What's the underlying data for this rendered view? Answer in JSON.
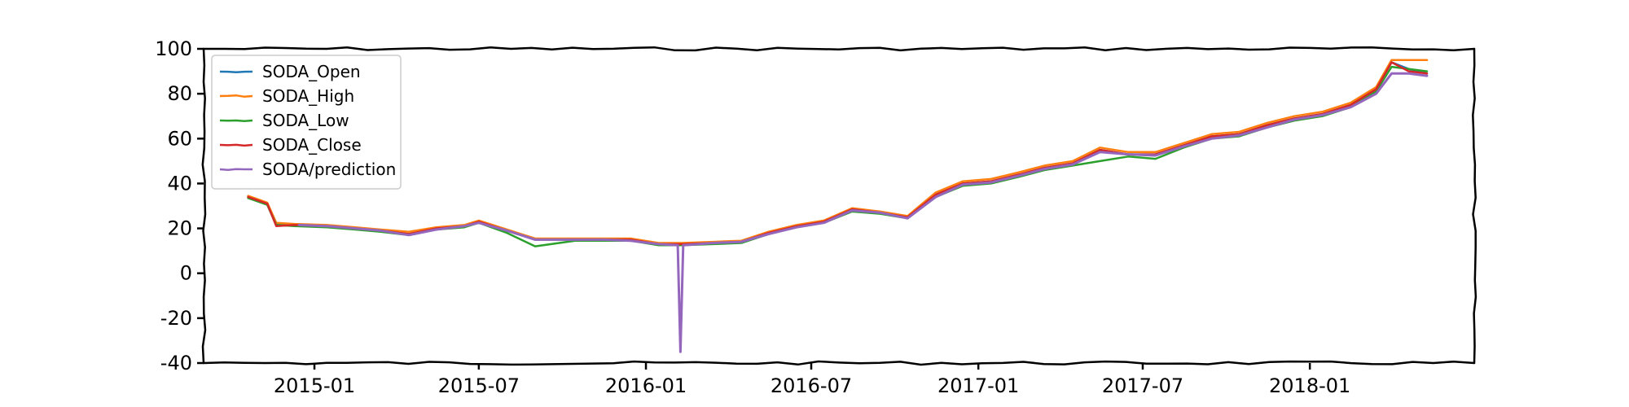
{
  "chart_data": {
    "type": "line",
    "title": "",
    "xlabel": "",
    "ylabel": "",
    "x_axis_type": "date",
    "xlim": [
      "2014-09-01",
      "2018-07-01"
    ],
    "ylim": [
      -40,
      100
    ],
    "yticks": [
      -40,
      -20,
      0,
      20,
      40,
      60,
      80,
      100
    ],
    "ytick_labels": [
      "-40",
      "-20",
      "0",
      "20",
      "40",
      "60",
      "80",
      "100"
    ],
    "xticks": [
      "2015-01-01",
      "2015-07-01",
      "2016-01-01",
      "2016-07-01",
      "2017-01-01",
      "2017-07-01",
      "2018-01-01"
    ],
    "xtick_labels": [
      "2015-01",
      "2015-07",
      "2016-01",
      "2016-07",
      "2017-01",
      "2017-07",
      "2018-01"
    ],
    "grid": false,
    "legend_position": "top-left",
    "style": "hand-drawn",
    "series": [
      {
        "name": "SODA_Open",
        "color": "#1f77b4",
        "points": [
          [
            "2014-10-20",
            34
          ],
          [
            "2014-11-10",
            31
          ],
          [
            "2014-11-20",
            22
          ],
          [
            "2014-12-10",
            21.5
          ],
          [
            "2015-01-15",
            21
          ],
          [
            "2015-02-15",
            20
          ],
          [
            "2015-03-15",
            19
          ],
          [
            "2015-04-15",
            17.5
          ],
          [
            "2015-05-15",
            20
          ],
          [
            "2015-06-15",
            21
          ],
          [
            "2015-07-01",
            23
          ],
          [
            "2015-08-01",
            19
          ],
          [
            "2015-09-01",
            15
          ],
          [
            "2015-10-15",
            15
          ],
          [
            "2015-11-15",
            15
          ],
          [
            "2015-12-15",
            15
          ],
          [
            "2016-01-15",
            13
          ],
          [
            "2016-02-10",
            13
          ],
          [
            "2016-03-15",
            13.5
          ],
          [
            "2016-04-15",
            14
          ],
          [
            "2016-05-15",
            18
          ],
          [
            "2016-06-15",
            21
          ],
          [
            "2016-07-15",
            23
          ],
          [
            "2016-08-15",
            28
          ],
          [
            "2016-09-15",
            27
          ],
          [
            "2016-10-15",
            25
          ],
          [
            "2016-11-15",
            35
          ],
          [
            "2016-12-15",
            40
          ],
          [
            "2017-01-15",
            41
          ],
          [
            "2017-02-15",
            44
          ],
          [
            "2017-03-15",
            47
          ],
          [
            "2017-04-15",
            49
          ],
          [
            "2017-05-15",
            55
          ],
          [
            "2017-06-15",
            53
          ],
          [
            "2017-07-15",
            53
          ],
          [
            "2017-08-15",
            57
          ],
          [
            "2017-09-15",
            61
          ],
          [
            "2017-10-15",
            62
          ],
          [
            "2017-11-15",
            66
          ],
          [
            "2017-12-15",
            69
          ],
          [
            "2018-01-15",
            71
          ],
          [
            "2018-02-15",
            75
          ],
          [
            "2018-03-15",
            82
          ],
          [
            "2018-04-01",
            94
          ],
          [
            "2018-04-20",
            91
          ],
          [
            "2018-05-10",
            89
          ]
        ]
      },
      {
        "name": "SODA_High",
        "color": "#ff7f0e",
        "points": [
          [
            "2014-10-20",
            34.5
          ],
          [
            "2014-11-10",
            31.5
          ],
          [
            "2014-11-20",
            22.5
          ],
          [
            "2014-12-10",
            22
          ],
          [
            "2015-01-15",
            21.5
          ],
          [
            "2015-02-15",
            20.5
          ],
          [
            "2015-03-15",
            19.5
          ],
          [
            "2015-04-15",
            18.5
          ],
          [
            "2015-05-15",
            20.5
          ],
          [
            "2015-06-15",
            21.5
          ],
          [
            "2015-07-01",
            23.5
          ],
          [
            "2015-08-01",
            19.5
          ],
          [
            "2015-09-01",
            15.5
          ],
          [
            "2015-10-15",
            15.5
          ],
          [
            "2015-11-15",
            15.5
          ],
          [
            "2015-12-15",
            15.5
          ],
          [
            "2016-01-15",
            13.5
          ],
          [
            "2016-02-10",
            13.5
          ],
          [
            "2016-03-15",
            14
          ],
          [
            "2016-04-15",
            14.5
          ],
          [
            "2016-05-15",
            18.5
          ],
          [
            "2016-06-15",
            21.5
          ],
          [
            "2016-07-15",
            23.5
          ],
          [
            "2016-08-15",
            29
          ],
          [
            "2016-09-15",
            27.5
          ],
          [
            "2016-10-15",
            25.5
          ],
          [
            "2016-11-15",
            36
          ],
          [
            "2016-12-15",
            41
          ],
          [
            "2017-01-15",
            42
          ],
          [
            "2017-02-15",
            45
          ],
          [
            "2017-03-15",
            48
          ],
          [
            "2017-04-15",
            50
          ],
          [
            "2017-05-15",
            56
          ],
          [
            "2017-06-15",
            54
          ],
          [
            "2017-07-15",
            54
          ],
          [
            "2017-08-15",
            58
          ],
          [
            "2017-09-15",
            62
          ],
          [
            "2017-10-15",
            63
          ],
          [
            "2017-11-15",
            67
          ],
          [
            "2017-12-15",
            70
          ],
          [
            "2018-01-15",
            72
          ],
          [
            "2018-02-15",
            76
          ],
          [
            "2018-03-15",
            83
          ],
          [
            "2018-04-01",
            95
          ],
          [
            "2018-04-20",
            95
          ],
          [
            "2018-05-10",
            95
          ]
        ]
      },
      {
        "name": "SODA_Low",
        "color": "#2ca02c",
        "points": [
          [
            "2014-10-20",
            33.5
          ],
          [
            "2014-11-10",
            30.5
          ],
          [
            "2014-11-20",
            21.5
          ],
          [
            "2014-12-10",
            21
          ],
          [
            "2015-01-15",
            20.5
          ],
          [
            "2015-02-15",
            19.5
          ],
          [
            "2015-03-15",
            18.5
          ],
          [
            "2015-04-15",
            17
          ],
          [
            "2015-05-15",
            19.5
          ],
          [
            "2015-06-15",
            20.5
          ],
          [
            "2015-07-01",
            22.5
          ],
          [
            "2015-08-01",
            18
          ],
          [
            "2015-09-01",
            12
          ],
          [
            "2015-10-15",
            14.5
          ],
          [
            "2015-11-15",
            14.5
          ],
          [
            "2015-12-15",
            14.5
          ],
          [
            "2016-01-15",
            12.5
          ],
          [
            "2016-02-10",
            12.5
          ],
          [
            "2016-03-15",
            13
          ],
          [
            "2016-04-15",
            13.5
          ],
          [
            "2016-05-15",
            17.5
          ],
          [
            "2016-06-15",
            20.5
          ],
          [
            "2016-07-15",
            22.5
          ],
          [
            "2016-08-15",
            27.5
          ],
          [
            "2016-09-15",
            26.5
          ],
          [
            "2016-10-15",
            24.5
          ],
          [
            "2016-11-15",
            34
          ],
          [
            "2016-12-15",
            39
          ],
          [
            "2017-01-15",
            40
          ],
          [
            "2017-02-15",
            43
          ],
          [
            "2017-03-15",
            46
          ],
          [
            "2017-04-15",
            48
          ],
          [
            "2017-05-15",
            50
          ],
          [
            "2017-06-15",
            52
          ],
          [
            "2017-07-15",
            51
          ],
          [
            "2017-08-15",
            56
          ],
          [
            "2017-09-15",
            60
          ],
          [
            "2017-10-15",
            61
          ],
          [
            "2017-11-15",
            65
          ],
          [
            "2017-12-15",
            68
          ],
          [
            "2018-01-15",
            70
          ],
          [
            "2018-02-15",
            74
          ],
          [
            "2018-03-15",
            81
          ],
          [
            "2018-04-01",
            92
          ],
          [
            "2018-04-20",
            91
          ],
          [
            "2018-05-10",
            90
          ]
        ]
      },
      {
        "name": "SODA_Close",
        "color": "#d62728",
        "points": [
          [
            "2014-10-20",
            34
          ],
          [
            "2014-11-10",
            31
          ],
          [
            "2014-11-20",
            21
          ],
          [
            "2014-12-10",
            21.5
          ],
          [
            "2015-01-15",
            21
          ],
          [
            "2015-02-15",
            20
          ],
          [
            "2015-03-15",
            19
          ],
          [
            "2015-04-15",
            17.5
          ],
          [
            "2015-05-15",
            20
          ],
          [
            "2015-06-15",
            21
          ],
          [
            "2015-07-01",
            23
          ],
          [
            "2015-08-01",
            19
          ],
          [
            "2015-09-01",
            15
          ],
          [
            "2015-10-15",
            15
          ],
          [
            "2015-11-15",
            15
          ],
          [
            "2015-12-15",
            15
          ],
          [
            "2016-01-15",
            13
          ],
          [
            "2016-02-10",
            13
          ],
          [
            "2016-03-15",
            13.5
          ],
          [
            "2016-04-15",
            14
          ],
          [
            "2016-05-15",
            18
          ],
          [
            "2016-06-15",
            21
          ],
          [
            "2016-07-15",
            23
          ],
          [
            "2016-08-15",
            28.5
          ],
          [
            "2016-09-15",
            27
          ],
          [
            "2016-10-15",
            25
          ],
          [
            "2016-11-15",
            35
          ],
          [
            "2016-12-15",
            40
          ],
          [
            "2017-01-15",
            41
          ],
          [
            "2017-02-15",
            44
          ],
          [
            "2017-03-15",
            47
          ],
          [
            "2017-04-15",
            49
          ],
          [
            "2017-05-15",
            55
          ],
          [
            "2017-06-15",
            53
          ],
          [
            "2017-07-15",
            53
          ],
          [
            "2017-08-15",
            57
          ],
          [
            "2017-09-15",
            61
          ],
          [
            "2017-10-15",
            62
          ],
          [
            "2017-11-15",
            66
          ],
          [
            "2017-12-15",
            69
          ],
          [
            "2018-01-15",
            71
          ],
          [
            "2018-02-15",
            75
          ],
          [
            "2018-03-15",
            82
          ],
          [
            "2018-04-01",
            94
          ],
          [
            "2018-04-20",
            90
          ],
          [
            "2018-05-10",
            89
          ]
        ]
      },
      {
        "name": "SODA/prediction",
        "color": "#9467bd",
        "points": [
          [
            "2014-12-15",
            21.5
          ],
          [
            "2015-01-15",
            21
          ],
          [
            "2015-02-15",
            20
          ],
          [
            "2015-03-15",
            19
          ],
          [
            "2015-04-15",
            17
          ],
          [
            "2015-05-15",
            19.5
          ],
          [
            "2015-06-15",
            21
          ],
          [
            "2015-07-01",
            22.5
          ],
          [
            "2015-08-01",
            19
          ],
          [
            "2015-09-01",
            15
          ],
          [
            "2015-10-15",
            15
          ],
          [
            "2015-11-15",
            15
          ],
          [
            "2015-12-15",
            14.5
          ],
          [
            "2016-01-15",
            13
          ],
          [
            "2016-02-05",
            12.5
          ],
          [
            "2016-02-08",
            -35
          ],
          [
            "2016-02-11",
            12.5
          ],
          [
            "2016-03-15",
            13.5
          ],
          [
            "2016-04-15",
            14
          ],
          [
            "2016-05-15",
            17.5
          ],
          [
            "2016-06-15",
            20.5
          ],
          [
            "2016-07-15",
            22.5
          ],
          [
            "2016-08-15",
            28
          ],
          [
            "2016-09-15",
            27
          ],
          [
            "2016-10-15",
            24.5
          ],
          [
            "2016-11-15",
            34
          ],
          [
            "2016-12-15",
            39.5
          ],
          [
            "2017-01-15",
            40.5
          ],
          [
            "2017-02-15",
            43.5
          ],
          [
            "2017-03-15",
            46.5
          ],
          [
            "2017-04-15",
            48.5
          ],
          [
            "2017-05-15",
            54
          ],
          [
            "2017-06-15",
            53
          ],
          [
            "2017-07-15",
            52.5
          ],
          [
            "2017-08-15",
            56.5
          ],
          [
            "2017-09-15",
            60
          ],
          [
            "2017-10-15",
            61.5
          ],
          [
            "2017-11-15",
            65
          ],
          [
            "2017-12-15",
            68.5
          ],
          [
            "2018-01-15",
            70.5
          ],
          [
            "2018-02-15",
            74
          ],
          [
            "2018-03-15",
            80
          ],
          [
            "2018-04-01",
            89
          ],
          [
            "2018-04-20",
            89
          ],
          [
            "2018-05-10",
            88
          ]
        ]
      }
    ]
  }
}
